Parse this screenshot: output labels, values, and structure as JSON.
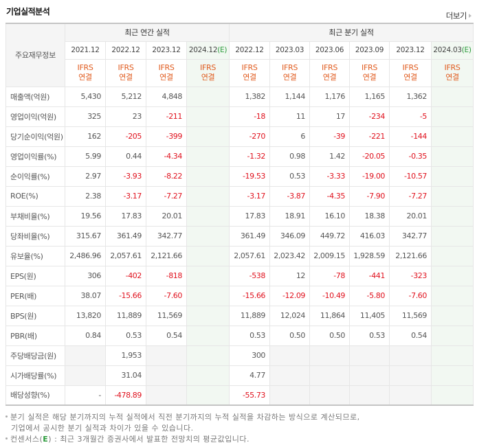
{
  "header": {
    "title": "기업실적분석",
    "more_label": "더보기"
  },
  "table": {
    "corner_label": "주요재무정보",
    "groups": [
      {
        "label": "최근 연간 실적",
        "span": 4
      },
      {
        "label": "최근 분기 실적",
        "span": 6
      }
    ],
    "periods": [
      {
        "label": "2021.12",
        "estimate": false
      },
      {
        "label": "2022.12",
        "estimate": false
      },
      {
        "label": "2023.12",
        "estimate": false
      },
      {
        "label": "2024.12",
        "estimate": true
      },
      {
        "label": "2022.12",
        "estimate": false
      },
      {
        "label": "2023.03",
        "estimate": false
      },
      {
        "label": "2023.06",
        "estimate": false
      },
      {
        "label": "2023.09",
        "estimate": false
      },
      {
        "label": "2023.12",
        "estimate": false
      },
      {
        "label": "2024.03",
        "estimate": true
      }
    ],
    "estimate_mark": "(E)",
    "ifrs_label": "IFRS",
    "consolidated_label": "연결",
    "rows": [
      {
        "label": "매출액(억원)",
        "group_start": false,
        "values": [
          "5,430",
          "5,212",
          "4,848",
          "",
          "1,382",
          "1,144",
          "1,176",
          "1,165",
          "1,362",
          ""
        ]
      },
      {
        "label": "영업이익(억원)",
        "group_start": false,
        "values": [
          "325",
          "23",
          "-211",
          "",
          "-18",
          "11",
          "17",
          "-234",
          "-5",
          ""
        ]
      },
      {
        "label": "당기순이익(억원)",
        "group_start": false,
        "values": [
          "162",
          "-205",
          "-399",
          "",
          "-270",
          "6",
          "-39",
          "-221",
          "-144",
          ""
        ]
      },
      {
        "label": "영업이익률(%)",
        "group_start": true,
        "values": [
          "5.99",
          "0.44",
          "-4.34",
          "",
          "-1.32",
          "0.98",
          "1.42",
          "-20.05",
          "-0.35",
          ""
        ]
      },
      {
        "label": "순이익률(%)",
        "group_start": false,
        "values": [
          "2.97",
          "-3.93",
          "-8.22",
          "",
          "-19.53",
          "0.53",
          "-3.33",
          "-19.00",
          "-10.57",
          ""
        ]
      },
      {
        "label": "ROE(%)",
        "group_start": false,
        "values": [
          "2.38",
          "-3.17",
          "-7.27",
          "",
          "-3.17",
          "-3.87",
          "-4.35",
          "-7.90",
          "-7.27",
          ""
        ]
      },
      {
        "label": "부채비율(%)",
        "group_start": true,
        "values": [
          "19.56",
          "17.83",
          "20.01",
          "",
          "17.83",
          "18.91",
          "16.10",
          "18.38",
          "20.01",
          ""
        ]
      },
      {
        "label": "당좌비율(%)",
        "group_start": false,
        "values": [
          "315.67",
          "361.49",
          "342.77",
          "",
          "361.49",
          "346.09",
          "449.72",
          "416.03",
          "342.77",
          ""
        ]
      },
      {
        "label": "유보율(%)",
        "group_start": false,
        "values": [
          "2,486.96",
          "2,057.61",
          "2,121.66",
          "",
          "2,057.61",
          "2,023.42",
          "2,009.15",
          "1,928.59",
          "2,121.66",
          ""
        ]
      },
      {
        "label": "EPS(원)",
        "group_start": true,
        "values": [
          "306",
          "-402",
          "-818",
          "",
          "-538",
          "12",
          "-78",
          "-441",
          "-323",
          ""
        ]
      },
      {
        "label": "PER(배)",
        "group_start": false,
        "values": [
          "38.07",
          "-15.66",
          "-7.60",
          "",
          "-15.66",
          "-12.09",
          "-10.49",
          "-5.80",
          "-7.60",
          ""
        ]
      },
      {
        "label": "BPS(원)",
        "group_start": false,
        "values": [
          "13,820",
          "11,889",
          "11,569",
          "",
          "11,889",
          "12,024",
          "11,864",
          "11,405",
          "11,569",
          ""
        ]
      },
      {
        "label": "PBR(배)",
        "group_start": false,
        "values": [
          "0.84",
          "0.53",
          "0.54",
          "",
          "0.53",
          "0.50",
          "0.50",
          "0.53",
          "0.54",
          ""
        ]
      },
      {
        "label": "주당배당금(원)",
        "group_start": true,
        "gray": [
          0,
          2,
          5,
          6,
          7,
          8
        ],
        "values": [
          "",
          "1,953",
          "",
          "",
          "300",
          "",
          "",
          "",
          "",
          ""
        ]
      },
      {
        "label": "시가배당률(%)",
        "group_start": false,
        "gray": [
          0,
          2,
          5,
          6,
          7,
          8
        ],
        "values": [
          "",
          "31.04",
          "",
          "",
          "4.77",
          "",
          "",
          "",
          "",
          ""
        ]
      },
      {
        "label": "배당성향(%)",
        "group_start": false,
        "gray": [
          2,
          5,
          6,
          7,
          8
        ],
        "values": [
          "-",
          "-478.89",
          "",
          "",
          "-55.73",
          "",
          "",
          "",
          "",
          ""
        ]
      }
    ]
  },
  "notes": {
    "line1": "분기 실적은 해당 분기까지의 누적 실적에서 직전 분기까지의 누적 실적을 차감하는 방식으로 계산되므로,",
    "line2": "기업에서 공시한 분기 실적과 차이가 있을 수 있습니다.",
    "line3_prefix": "컨센서스(",
    "line3_e": "E",
    "line3_suffix": ") : 최근 3개월간 증권사에서 발표한 전망치의 평균값입니다."
  },
  "colors": {
    "negative": "#e0101c",
    "ifrs": "#e05a1d",
    "estimate_bg": "#f2f8f2",
    "estimate_mark": "#2a9a3a"
  }
}
